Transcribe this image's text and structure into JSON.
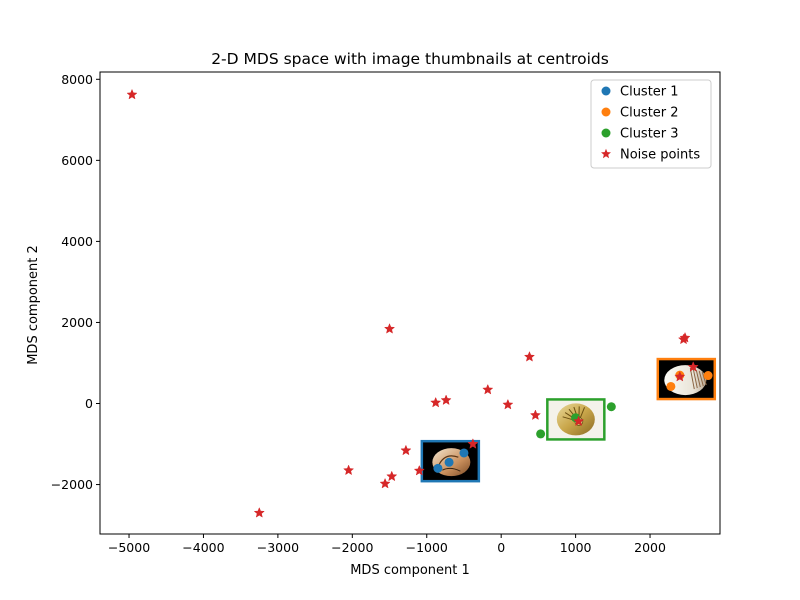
{
  "chart_data": {
    "type": "scatter",
    "title": "2-D MDS space with image thumbnails at centroids",
    "xlabel": "MDS component 1",
    "ylabel": "MDS component 2",
    "xlim": [
      -5390,
      2940
    ],
    "ylim": [
      -3220,
      8180
    ],
    "xticks": [
      -5000,
      -4000,
      -3000,
      -2000,
      -1000,
      0,
      1000,
      2000
    ],
    "yticks": [
      -2000,
      0,
      2000,
      4000,
      6000,
      8000
    ],
    "grid": false,
    "legend_position": "top-right",
    "series": [
      {
        "name": "Cluster 1",
        "color": "#1f77b4",
        "marker": "circle",
        "points": [
          [
            -500,
            -1220
          ],
          [
            -700,
            -1450
          ],
          [
            -850,
            -1600
          ]
        ],
        "centroid": [
          -683,
          -1423
        ]
      },
      {
        "name": "Cluster 2",
        "color": "#ff7f0e",
        "marker": "circle",
        "points": [
          [
            2280,
            420
          ],
          [
            2400,
            700
          ],
          [
            2780,
            690
          ]
        ],
        "centroid": [
          2487,
          603
        ]
      },
      {
        "name": "Cluster 3",
        "color": "#2ca02c",
        "marker": "circle",
        "points": [
          [
            530,
            -750
          ],
          [
            1000,
            -350
          ],
          [
            1480,
            -80
          ]
        ],
        "centroid": [
          1003,
          -393
        ]
      },
      {
        "name": "Noise points",
        "color": "#d62728",
        "marker": "star",
        "points": [
          [
            -4960,
            7620
          ],
          [
            -1500,
            1840
          ],
          [
            380,
            1150
          ],
          [
            -180,
            340
          ],
          [
            -880,
            20
          ],
          [
            -740,
            80
          ],
          [
            90,
            -30
          ],
          [
            460,
            -290
          ],
          [
            -1280,
            -1160
          ],
          [
            -380,
            -1000
          ],
          [
            -2050,
            -1650
          ],
          [
            -1470,
            -1800
          ],
          [
            -1560,
            -1980
          ],
          [
            -3250,
            -2700
          ],
          [
            1040,
            -440
          ],
          [
            -1100,
            -1660
          ],
          [
            2450,
            1580
          ],
          [
            2470,
            1620
          ],
          [
            2400,
            660
          ],
          [
            2580,
            900
          ]
        ]
      }
    ]
  }
}
